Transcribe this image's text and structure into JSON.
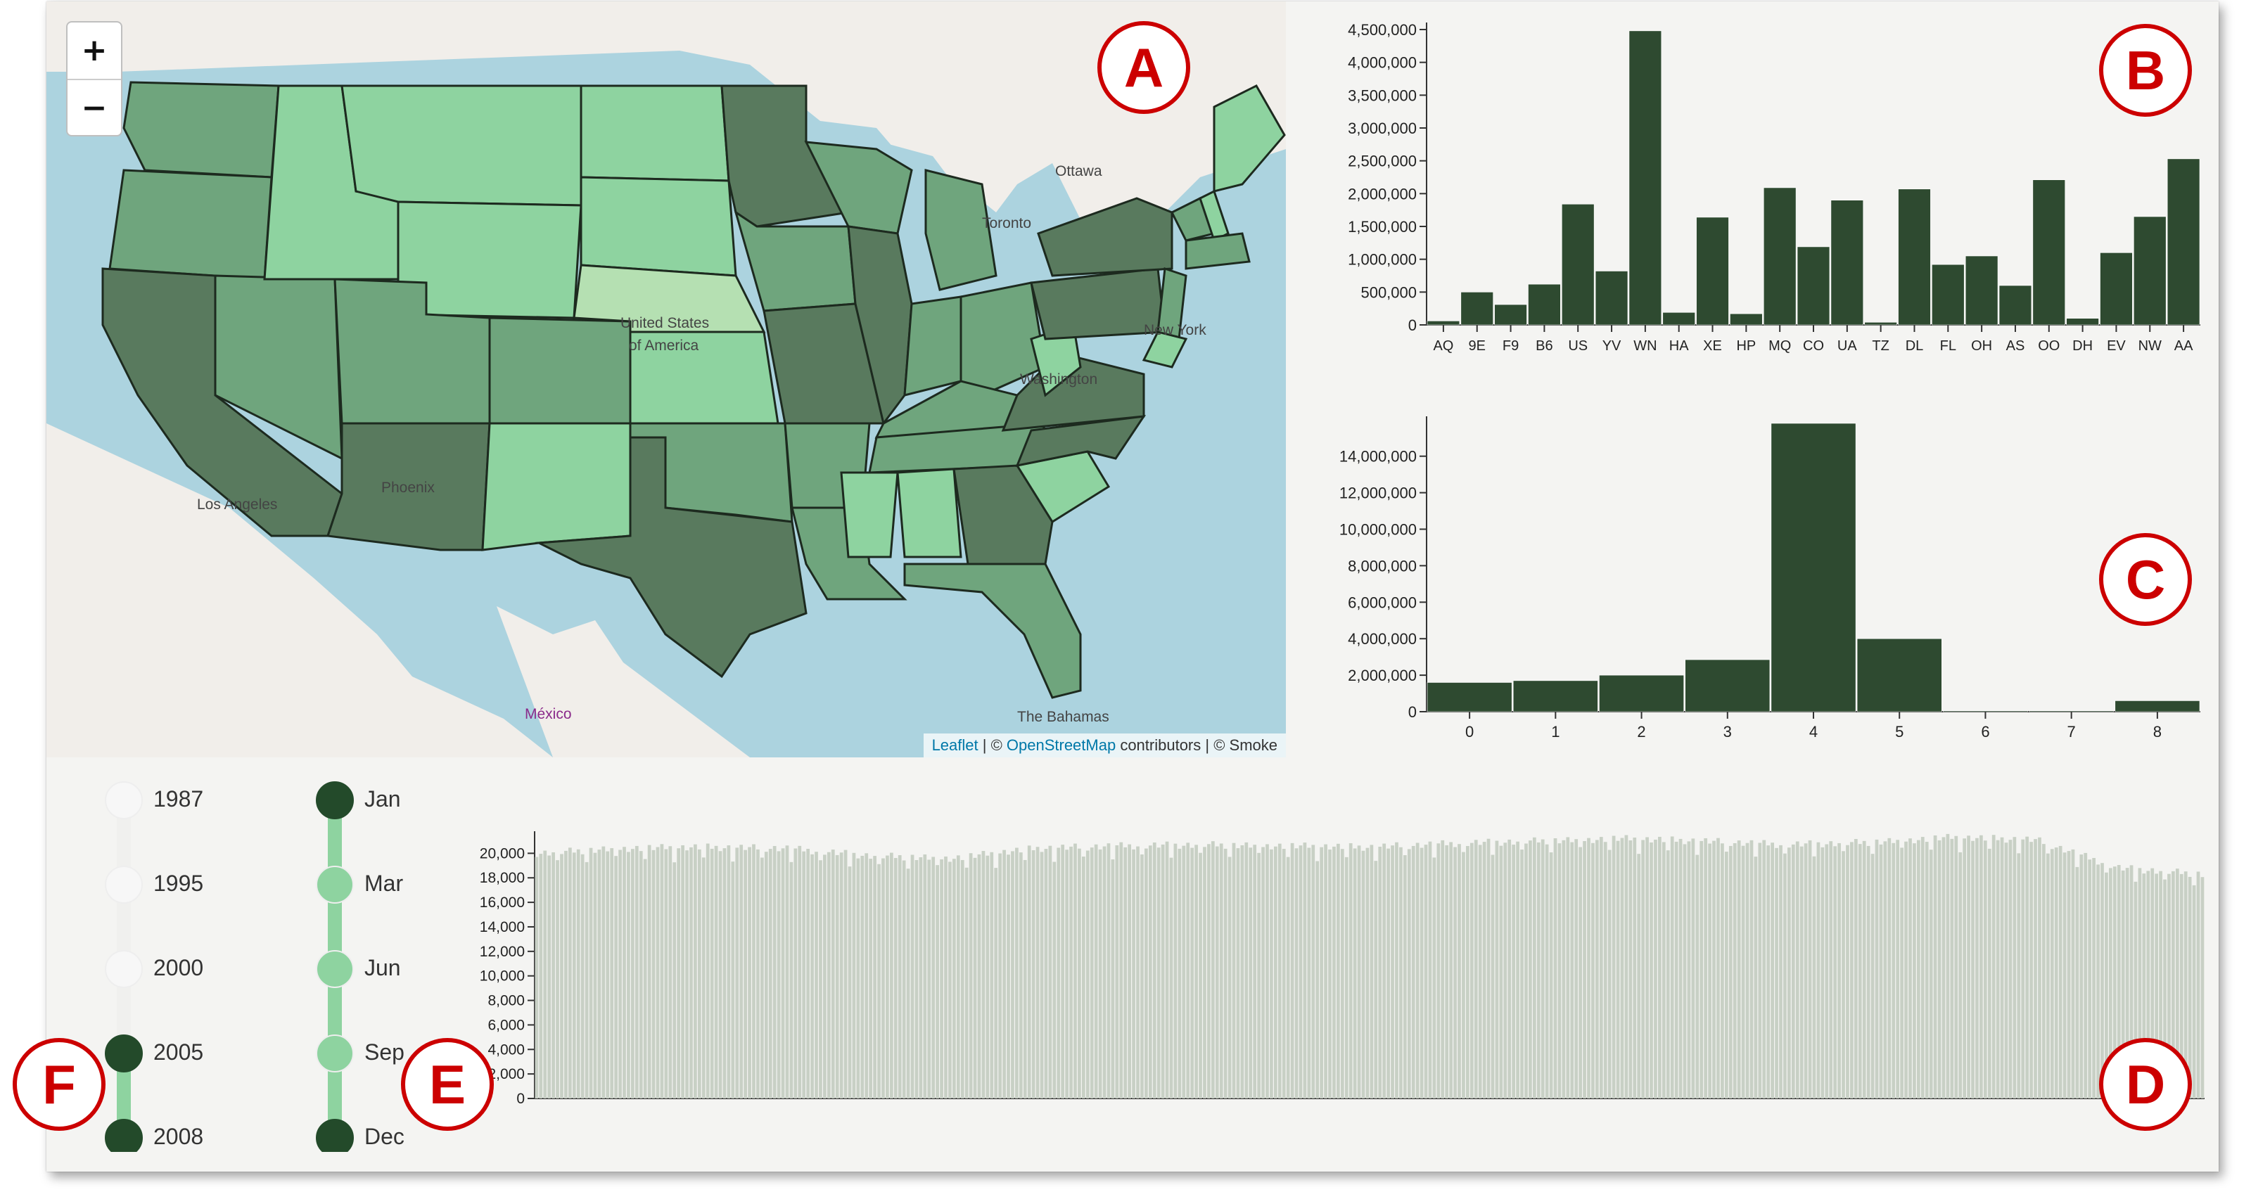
{
  "map": {
    "zoom_in_label": "+",
    "zoom_out_label": "−",
    "attribution": {
      "leaflet": "Leaflet",
      "sep1": " | © ",
      "osm": "OpenStreetMap",
      "rest": " contributors | © Smoke"
    },
    "place_labels": {
      "ottawa": "Ottawa",
      "toronto": "Toronto",
      "new_york": "New York",
      "washington": "Washington",
      "united_states": "United States",
      "of_america": "of America",
      "phoenix": "Phoenix",
      "los_angeles": "Los Angeles",
      "mexico": "México",
      "the_bahamas": "The Bahamas"
    },
    "colors": {
      "water": "#acd3df",
      "land": "#f1eeea",
      "dark": "#597a5e",
      "mid": "#6fa57d",
      "light": "#8ed3a0",
      "lightest": "#b5e0b2"
    }
  },
  "callouts": {
    "a": "A",
    "b": "B",
    "c": "C",
    "d": "D",
    "e": "E",
    "f": "F"
  },
  "sliders": {
    "years": [
      "1987",
      "1995",
      "2000",
      "2005",
      "2008"
    ],
    "years_selected": [
      "2005",
      "2008"
    ],
    "months": [
      "Jan",
      "Mar",
      "Jun",
      "Sep",
      "Dec"
    ],
    "months_selected": [
      "Jan",
      "Dec"
    ],
    "colors": {
      "handle": "#234a2a",
      "track_active": "#8ed3a0",
      "track_inactive": "#f0f0ee",
      "handle_inactive": "#f7f7f7"
    }
  },
  "chart_data": [
    {
      "id": "B",
      "type": "bar",
      "categories": [
        "AQ",
        "9E",
        "F9",
        "B6",
        "US",
        "YV",
        "WN",
        "HA",
        "XE",
        "HP",
        "MQ",
        "CO",
        "UA",
        "TZ",
        "DL",
        "FL",
        "OH",
        "AS",
        "OO",
        "DH",
        "EV",
        "NW",
        "AA"
      ],
      "values": [
        60000,
        500000,
        310000,
        620000,
        1840000,
        820000,
        4480000,
        190000,
        1640000,
        170000,
        2090000,
        1190000,
        1900000,
        40000,
        2070000,
        920000,
        1050000,
        600000,
        2210000,
        100000,
        1100000,
        1650000,
        2530000
      ],
      "yticks": [
        "0",
        "500,000",
        "1,000,000",
        "1,500,000",
        "2,000,000",
        "2,500,000",
        "3,000,000",
        "3,500,000",
        "4,000,000",
        "4,500,000"
      ],
      "ylim": [
        0,
        4500000
      ],
      "color": "#2e4a30"
    },
    {
      "id": "C",
      "type": "bar",
      "categories": [
        "0",
        "1",
        "2",
        "3",
        "4",
        "5",
        "6",
        "7",
        "8"
      ],
      "values": [
        1600000,
        1700000,
        2000000,
        2850000,
        15800000,
        4000000,
        50000,
        50000,
        600000
      ],
      "yticks": [
        "0",
        "2,000,000",
        "4,000,000",
        "6,000,000",
        "8,000,000",
        "10,000,000",
        "12,000,000",
        "14,000,000"
      ],
      "ylim": [
        0,
        15800000
      ],
      "color": "#2e4a30"
    },
    {
      "id": "D",
      "type": "bar",
      "count": 400,
      "base": 20500,
      "values_approx": [
        20000,
        20400,
        20500,
        20400,
        19800,
        19600,
        20400,
        20600,
        20700,
        20600,
        20500,
        20800,
        21000,
        21200,
        21000,
        20700,
        20900,
        21300,
        21100,
        18800,
        18300
      ],
      "yticks": [
        "0",
        "2,000",
        "4,000",
        "6,000",
        "8,000",
        "10,000",
        "12,000",
        "14,000",
        "16,000",
        "18,000",
        "20,000"
      ],
      "ylim": [
        0,
        21800
      ],
      "color": "#c8d0c5"
    }
  ]
}
